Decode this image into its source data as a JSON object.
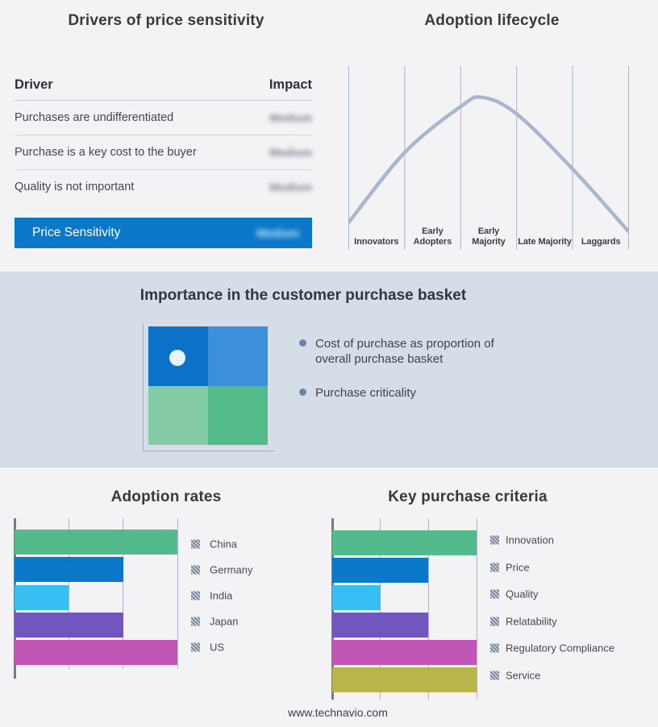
{
  "colors": {
    "page_bg": "#f3f3f5",
    "band_bg": "#d5dee8",
    "accent_blue": "#0b78ca",
    "curve": "#a9b7cc",
    "gridline": "#aab6c6",
    "axis": "#6c7d98",
    "hatch_stripe": "#67788d",
    "hatch_bg": "#c9d0d9"
  },
  "drivers_section": {
    "title": "Drivers of price sensitivity",
    "table": {
      "columns": [
        "Driver",
        "Impact"
      ],
      "impact_values_redacted": true,
      "rows": [
        {
          "driver": "Purchases are undifferentiated",
          "impact": "Medium"
        },
        {
          "driver": "Purchase is a key cost to the buyer",
          "impact": "Medium"
        },
        {
          "driver": "Quality is not important",
          "impact": "Medium"
        }
      ],
      "summary_row": {
        "driver": "Price Sensitivity",
        "impact": "Medium"
      }
    }
  },
  "basket_section": {
    "title": "Importance in the customer purchase basket",
    "bullets": [
      "Cost of purchase as proportion of overall purchase basket",
      "Purchase criticality"
    ],
    "quadrant_colors": [
      "#0a73c9",
      "#3e8fd9",
      "#84caa4",
      "#54bb8b"
    ],
    "marker": "white-dot-in-top-left-quadrant"
  },
  "footer": {
    "url": "www.technavio.com"
  },
  "chart_data": [
    {
      "type": "line",
      "title": "Adoption lifecycle",
      "x_categories": [
        "Innovators",
        "Early Adopters",
        "Early Majority",
        "Late Majority",
        "Laggards"
      ],
      "curve_points": [
        [
          0,
          0.15
        ],
        [
          0.2,
          0.53
        ],
        [
          0.4,
          0.78
        ],
        [
          0.477,
          0.83
        ],
        [
          0.6,
          0.74
        ],
        [
          0.8,
          0.44
        ],
        [
          1,
          0.1
        ]
      ],
      "curve_note": "qualitative bell curve; points = [fraction of plot width, fraction of plot height above baseline]",
      "grid": "6 vertical gridlines at stage boundaries, no y axis",
      "line_color": "#a9b7cc",
      "legend": "none"
    },
    {
      "type": "bar",
      "orientation": "horizontal",
      "title": "Adoption rates",
      "categories": [
        "China",
        "Germany",
        "India",
        "Japan",
        "US"
      ],
      "values": [
        3,
        2,
        1,
        2,
        3
      ],
      "xlim": [
        0,
        3
      ],
      "value_note": "relative bar lengths in gridline units; no numeric axis labels shown",
      "bar_colors": [
        "#52ba8c",
        "#0b78ca",
        "#38bef0",
        "#7156bf",
        "#c057b6"
      ],
      "legend_position": "right",
      "legend_swatch_style": "gray-diagonal-hatch"
    },
    {
      "type": "bar",
      "orientation": "horizontal",
      "title": "Key purchase criteria",
      "categories": [
        "Innovation",
        "Price",
        "Quality",
        "Relatability",
        "Regulatory Compliance",
        "Service"
      ],
      "values": [
        3,
        2,
        1,
        2,
        3,
        3
      ],
      "xlim": [
        0,
        3
      ],
      "value_note": "relative bar lengths in gridline units; no numeric axis labels shown",
      "bar_colors": [
        "#52ba8c",
        "#0b78ca",
        "#38bef0",
        "#7156bf",
        "#c057b6",
        "#bab54c"
      ],
      "legend_position": "right",
      "legend_swatch_style": "gray-diagonal-hatch"
    }
  ]
}
